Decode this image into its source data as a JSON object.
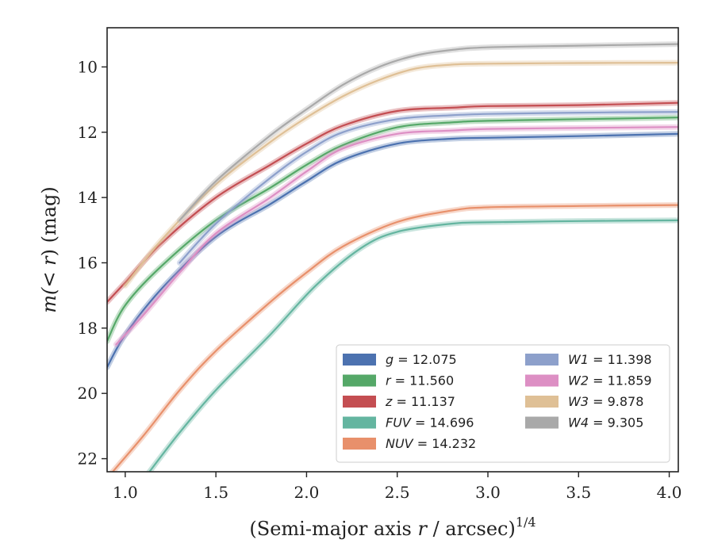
{
  "chart_data": {
    "type": "line",
    "xlabel_prefix": "(Semi-major axis ",
    "xlabel_var": "r",
    "xlabel_suffix": " / arcsec)",
    "xlabel_exp": "1/4",
    "ylabel_prefix": "m(",
    "ylabel_var": "< r",
    "ylabel_suffix": ") (mag)",
    "xlim": [
      0.9,
      4.05
    ],
    "ylim": [
      22.4,
      8.8
    ],
    "y_inverted": true,
    "xticks": [
      1.0,
      1.5,
      2.0,
      2.5,
      3.0,
      3.5,
      4.0
    ],
    "xtick_labels": [
      "1.0",
      "1.5",
      "2.0",
      "2.5",
      "3.0",
      "3.5",
      "4.0"
    ],
    "yticks": [
      10,
      12,
      14,
      16,
      18,
      20,
      22
    ],
    "ytick_labels": [
      "10",
      "12",
      "14",
      "16",
      "18",
      "20",
      "22"
    ],
    "grid": false,
    "legend_position": "lower-right",
    "series": [
      {
        "name": "g",
        "value": "12.075",
        "color": "#4c72b0",
        "col": 0,
        "row": 0,
        "x": [
          0.9,
          1.0,
          1.2,
          1.5,
          1.8,
          2.0,
          2.2,
          2.5,
          2.8,
          3.0,
          3.5,
          4.05
        ],
        "y": [
          19.2,
          18.2,
          16.8,
          15.2,
          14.2,
          13.5,
          12.85,
          12.35,
          12.2,
          12.17,
          12.12,
          12.05
        ]
      },
      {
        "name": "r",
        "value": "11.560",
        "color": "#55a868",
        "col": 0,
        "row": 1,
        "x": [
          0.9,
          1.0,
          1.2,
          1.5,
          1.8,
          2.0,
          2.2,
          2.5,
          2.8,
          3.0,
          3.5,
          4.05
        ],
        "y": [
          18.4,
          17.3,
          16.1,
          14.7,
          13.7,
          13.0,
          12.4,
          11.85,
          11.7,
          11.65,
          11.6,
          11.55
        ]
      },
      {
        "name": "z",
        "value": "11.137",
        "color": "#c44e52",
        "col": 0,
        "row": 2,
        "x": [
          0.9,
          1.0,
          1.2,
          1.5,
          1.8,
          2.0,
          2.2,
          2.5,
          2.8,
          3.0,
          3.5,
          4.05
        ],
        "y": [
          17.2,
          16.6,
          15.4,
          14.0,
          13.0,
          12.35,
          11.8,
          11.35,
          11.25,
          11.2,
          11.17,
          11.1
        ]
      },
      {
        "name": "FUV",
        "value": "14.696",
        "color": "#64b5a0",
        "col": 0,
        "row": 3,
        "x": [
          1.12,
          1.3,
          1.5,
          1.8,
          2.05,
          2.3,
          2.5,
          2.8,
          3.0,
          3.5,
          4.05
        ],
        "y": [
          22.5,
          21.2,
          19.9,
          18.2,
          16.7,
          15.55,
          15.05,
          14.8,
          14.76,
          14.72,
          14.7
        ]
      },
      {
        "name": "NUV",
        "value": "14.232",
        "color": "#e8906b",
        "col": 0,
        "row": 4,
        "x": [
          0.9,
          1.1,
          1.3,
          1.5,
          1.8,
          2.0,
          2.2,
          2.5,
          2.8,
          3.0,
          3.5,
          4.05
        ],
        "y": [
          22.6,
          21.3,
          19.9,
          18.7,
          17.2,
          16.3,
          15.5,
          14.75,
          14.4,
          14.3,
          14.26,
          14.23
        ]
      },
      {
        "name": "W1",
        "value": "11.398",
        "color": "#8da0cb",
        "col": 1,
        "row": 0,
        "x": [
          1.3,
          1.5,
          1.8,
          2.0,
          2.2,
          2.5,
          2.8,
          3.0,
          3.5,
          4.05
        ],
        "y": [
          16.0,
          14.8,
          13.4,
          12.6,
          12.0,
          11.6,
          11.48,
          11.44,
          11.4,
          11.38
        ]
      },
      {
        "name": "W2",
        "value": "11.859",
        "color": "#dd8fc4",
        "col": 1,
        "row": 1,
        "x": [
          0.95,
          1.1,
          1.3,
          1.5,
          1.8,
          2.0,
          2.2,
          2.5,
          2.8,
          3.0,
          3.5,
          4.05
        ],
        "y": [
          18.5,
          17.6,
          16.3,
          15.1,
          14.0,
          13.2,
          12.5,
          12.05,
          11.95,
          11.9,
          11.87,
          11.84
        ]
      },
      {
        "name": "W3",
        "value": "9.878",
        "color": "#dfc096",
        "col": 1,
        "row": 2,
        "x": [
          1.0,
          1.2,
          1.5,
          1.8,
          2.0,
          2.2,
          2.4,
          2.6,
          2.8,
          3.0,
          3.5,
          4.05
        ],
        "y": [
          16.7,
          15.3,
          13.6,
          12.3,
          11.55,
          10.9,
          10.4,
          10.05,
          9.93,
          9.9,
          9.88,
          9.87
        ]
      },
      {
        "name": "W4",
        "value": "9.305",
        "color": "#a9a9a9",
        "col": 1,
        "row": 3,
        "x": [
          1.3,
          1.5,
          1.8,
          2.0,
          2.2,
          2.4,
          2.6,
          2.8,
          3.0,
          3.5,
          4.05
        ],
        "y": [
          14.7,
          13.5,
          12.1,
          11.3,
          10.55,
          10.0,
          9.65,
          9.48,
          9.4,
          9.35,
          9.3
        ]
      }
    ]
  }
}
